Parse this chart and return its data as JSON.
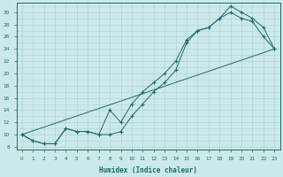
{
  "xlabel": "Humidex (Indice chaleur)",
  "ylabel": "",
  "bg_color": "#cce9e9",
  "line_color": "#1a6b6b",
  "grid_color": "#b0d4d4",
  "xlim": [
    -0.5,
    23.5
  ],
  "ylim": [
    7.5,
    31.5
  ],
  "xticks": [
    0,
    1,
    2,
    3,
    4,
    5,
    6,
    7,
    8,
    9,
    10,
    11,
    12,
    13,
    14,
    15,
    16,
    17,
    18,
    19,
    20,
    21,
    22,
    23
  ],
  "yticks": [
    8,
    10,
    12,
    14,
    16,
    18,
    20,
    22,
    24,
    26,
    28,
    30
  ],
  "line1_x": [
    0,
    1,
    2,
    3,
    4,
    5,
    6,
    7,
    8,
    9,
    10,
    11,
    12,
    13,
    14,
    15,
    16,
    17,
    18,
    19,
    20,
    21,
    22,
    23
  ],
  "line1_y": [
    10,
    9,
    8.5,
    8.5,
    11,
    10.5,
    10.5,
    10,
    10,
    10.5,
    13,
    15,
    17,
    18.5,
    20.5,
    25,
    27,
    27.5,
    29,
    31,
    30,
    29,
    27.5,
    24
  ],
  "line2_x": [
    0,
    1,
    2,
    3,
    4,
    5,
    6,
    7,
    8,
    9,
    10,
    11,
    12,
    13,
    14,
    15,
    16,
    17,
    18,
    19,
    20,
    21,
    22,
    23
  ],
  "line2_y": [
    10,
    9,
    8.5,
    8.5,
    11,
    10.5,
    10.5,
    10,
    14,
    12,
    15,
    17,
    18.5,
    20,
    22,
    25.5,
    27,
    27.5,
    29,
    30,
    29,
    28.5,
    26,
    24
  ],
  "line3_x": [
    0,
    23
  ],
  "line3_y": [
    10,
    24
  ]
}
